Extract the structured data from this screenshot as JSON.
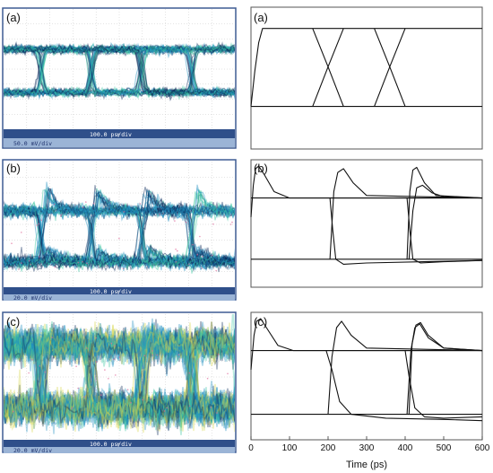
{
  "colors": {
    "scope_bg": "#ffffff",
    "scope_frame": "#3e5c93",
    "scope_bar_dark": "#2f4f8a",
    "scope_bar_light": "#9bb4d6",
    "trace_dense": "#0b2a5a",
    "trace_mid": "#1f8fbf",
    "trace_light": "#39c6a0",
    "trace_sparse": "#d8d84a",
    "trace_outlier": "#e06a9a",
    "sim_line": "#111111"
  },
  "scope_panels": [
    {
      "label": "(a)",
      "timebase": "100.0 ps/div",
      "vscale": "50.0 mV/div",
      "marker": "↑",
      "eye_style": "clean"
    },
    {
      "label": "(b)",
      "timebase": "100.0 ps/div",
      "vscale": "20.0 mV/div",
      "marker": "↑",
      "eye_style": "overshoot"
    },
    {
      "label": "(c)",
      "timebase": "100.0 ps/div",
      "vscale": "20.0 mV/div",
      "marker": "↑",
      "eye_style": "noisy"
    }
  ],
  "chart_data": [
    {
      "type": "line",
      "panel": "(a)",
      "title": "(a)",
      "xlabel": "",
      "ylabel": "",
      "xlim": [
        0,
        600
      ],
      "ylim": [
        0,
        1
      ],
      "series": [
        {
          "x": [
            0,
            10,
            20,
            30,
            40,
            600
          ],
          "y": [
            0.3,
            0.55,
            0.75,
            0.85,
            0.85,
            0.85
          ]
        },
        {
          "x": [
            0,
            600
          ],
          "y": [
            0.3,
            0.3
          ]
        },
        {
          "x": [
            160,
            200,
            240
          ],
          "y": [
            0.85,
            0.58,
            0.3
          ]
        },
        {
          "x": [
            160,
            200,
            240
          ],
          "y": [
            0.3,
            0.58,
            0.85
          ]
        },
        {
          "x": [
            320,
            360,
            400
          ],
          "y": [
            0.85,
            0.58,
            0.3
          ]
        },
        {
          "x": [
            320,
            360,
            400
          ],
          "y": [
            0.3,
            0.58,
            0.85
          ]
        }
      ]
    },
    {
      "type": "line",
      "panel": "(b)",
      "title": "(b)",
      "xlabel": "",
      "ylabel": "",
      "xlim": [
        0,
        600
      ],
      "ylim": [
        0,
        1
      ],
      "series": [
        {
          "x": [
            0,
            6,
            12,
            20,
            35,
            60,
            100,
            600
          ],
          "y": [
            0.55,
            0.8,
            0.93,
            0.95,
            0.88,
            0.75,
            0.7,
            0.7
          ]
        },
        {
          "x": [
            0,
            600
          ],
          "y": [
            0.7,
            0.7
          ]
        },
        {
          "x": [
            0,
            600
          ],
          "y": [
            0.22,
            0.22
          ]
        },
        {
          "x": [
            205,
            215,
            225,
            240,
            265,
            300,
            600
          ],
          "y": [
            0.22,
            0.75,
            0.9,
            0.93,
            0.82,
            0.72,
            0.7
          ]
        },
        {
          "x": [
            205,
            212,
            220,
            240,
            300,
            450,
            600
          ],
          "y": [
            0.7,
            0.45,
            0.22,
            0.18,
            0.19,
            0.2,
            0.21
          ]
        },
        {
          "x": [
            405,
            412,
            420,
            430,
            450,
            480,
            600
          ],
          "y": [
            0.22,
            0.75,
            0.92,
            0.94,
            0.82,
            0.72,
            0.7
          ]
        },
        {
          "x": [
            410,
            420,
            430,
            445,
            470,
            500,
            600
          ],
          "y": [
            0.22,
            0.6,
            0.78,
            0.8,
            0.74,
            0.71,
            0.7
          ]
        },
        {
          "x": [
            405,
            412,
            420,
            440,
            500,
            600
          ],
          "y": [
            0.7,
            0.45,
            0.22,
            0.19,
            0.2,
            0.21
          ]
        }
      ]
    },
    {
      "type": "line",
      "panel": "(c)",
      "title": "(c)",
      "xlabel": "Time (ps)",
      "ylabel": "",
      "xlim": [
        0,
        600
      ],
      "ylim": [
        0,
        1
      ],
      "xticks": [
        0,
        100,
        200,
        300,
        400,
        500,
        600
      ],
      "series": [
        {
          "x": [
            0,
            8,
            15,
            25,
            40,
            70,
            110,
            600
          ],
          "y": [
            0.55,
            0.82,
            0.93,
            0.95,
            0.88,
            0.74,
            0.7,
            0.7
          ]
        },
        {
          "x": [
            0,
            600
          ],
          "y": [
            0.7,
            0.7
          ]
        },
        {
          "x": [
            0,
            600
          ],
          "y": [
            0.2,
            0.2
          ]
        },
        {
          "x": [
            200,
            210,
            222,
            235,
            260,
            300,
            600
          ],
          "y": [
            0.2,
            0.65,
            0.88,
            0.93,
            0.82,
            0.72,
            0.7
          ]
        },
        {
          "x": [
            195,
            210,
            230,
            260,
            350,
            500,
            600
          ],
          "y": [
            0.7,
            0.55,
            0.3,
            0.2,
            0.17,
            0.16,
            0.15
          ]
        },
        {
          "x": [
            410,
            418,
            428,
            440,
            460,
            500,
            600
          ],
          "y": [
            0.2,
            0.75,
            0.9,
            0.92,
            0.82,
            0.72,
            0.7
          ]
        },
        {
          "x": [
            405,
            415,
            425,
            438,
            460,
            500,
            600
          ],
          "y": [
            0.2,
            0.7,
            0.88,
            0.91,
            0.8,
            0.72,
            0.7
          ]
        },
        {
          "x": [
            400,
            410,
            425,
            450,
            500,
            600
          ],
          "y": [
            0.7,
            0.5,
            0.25,
            0.18,
            0.17,
            0.18
          ]
        }
      ]
    }
  ]
}
